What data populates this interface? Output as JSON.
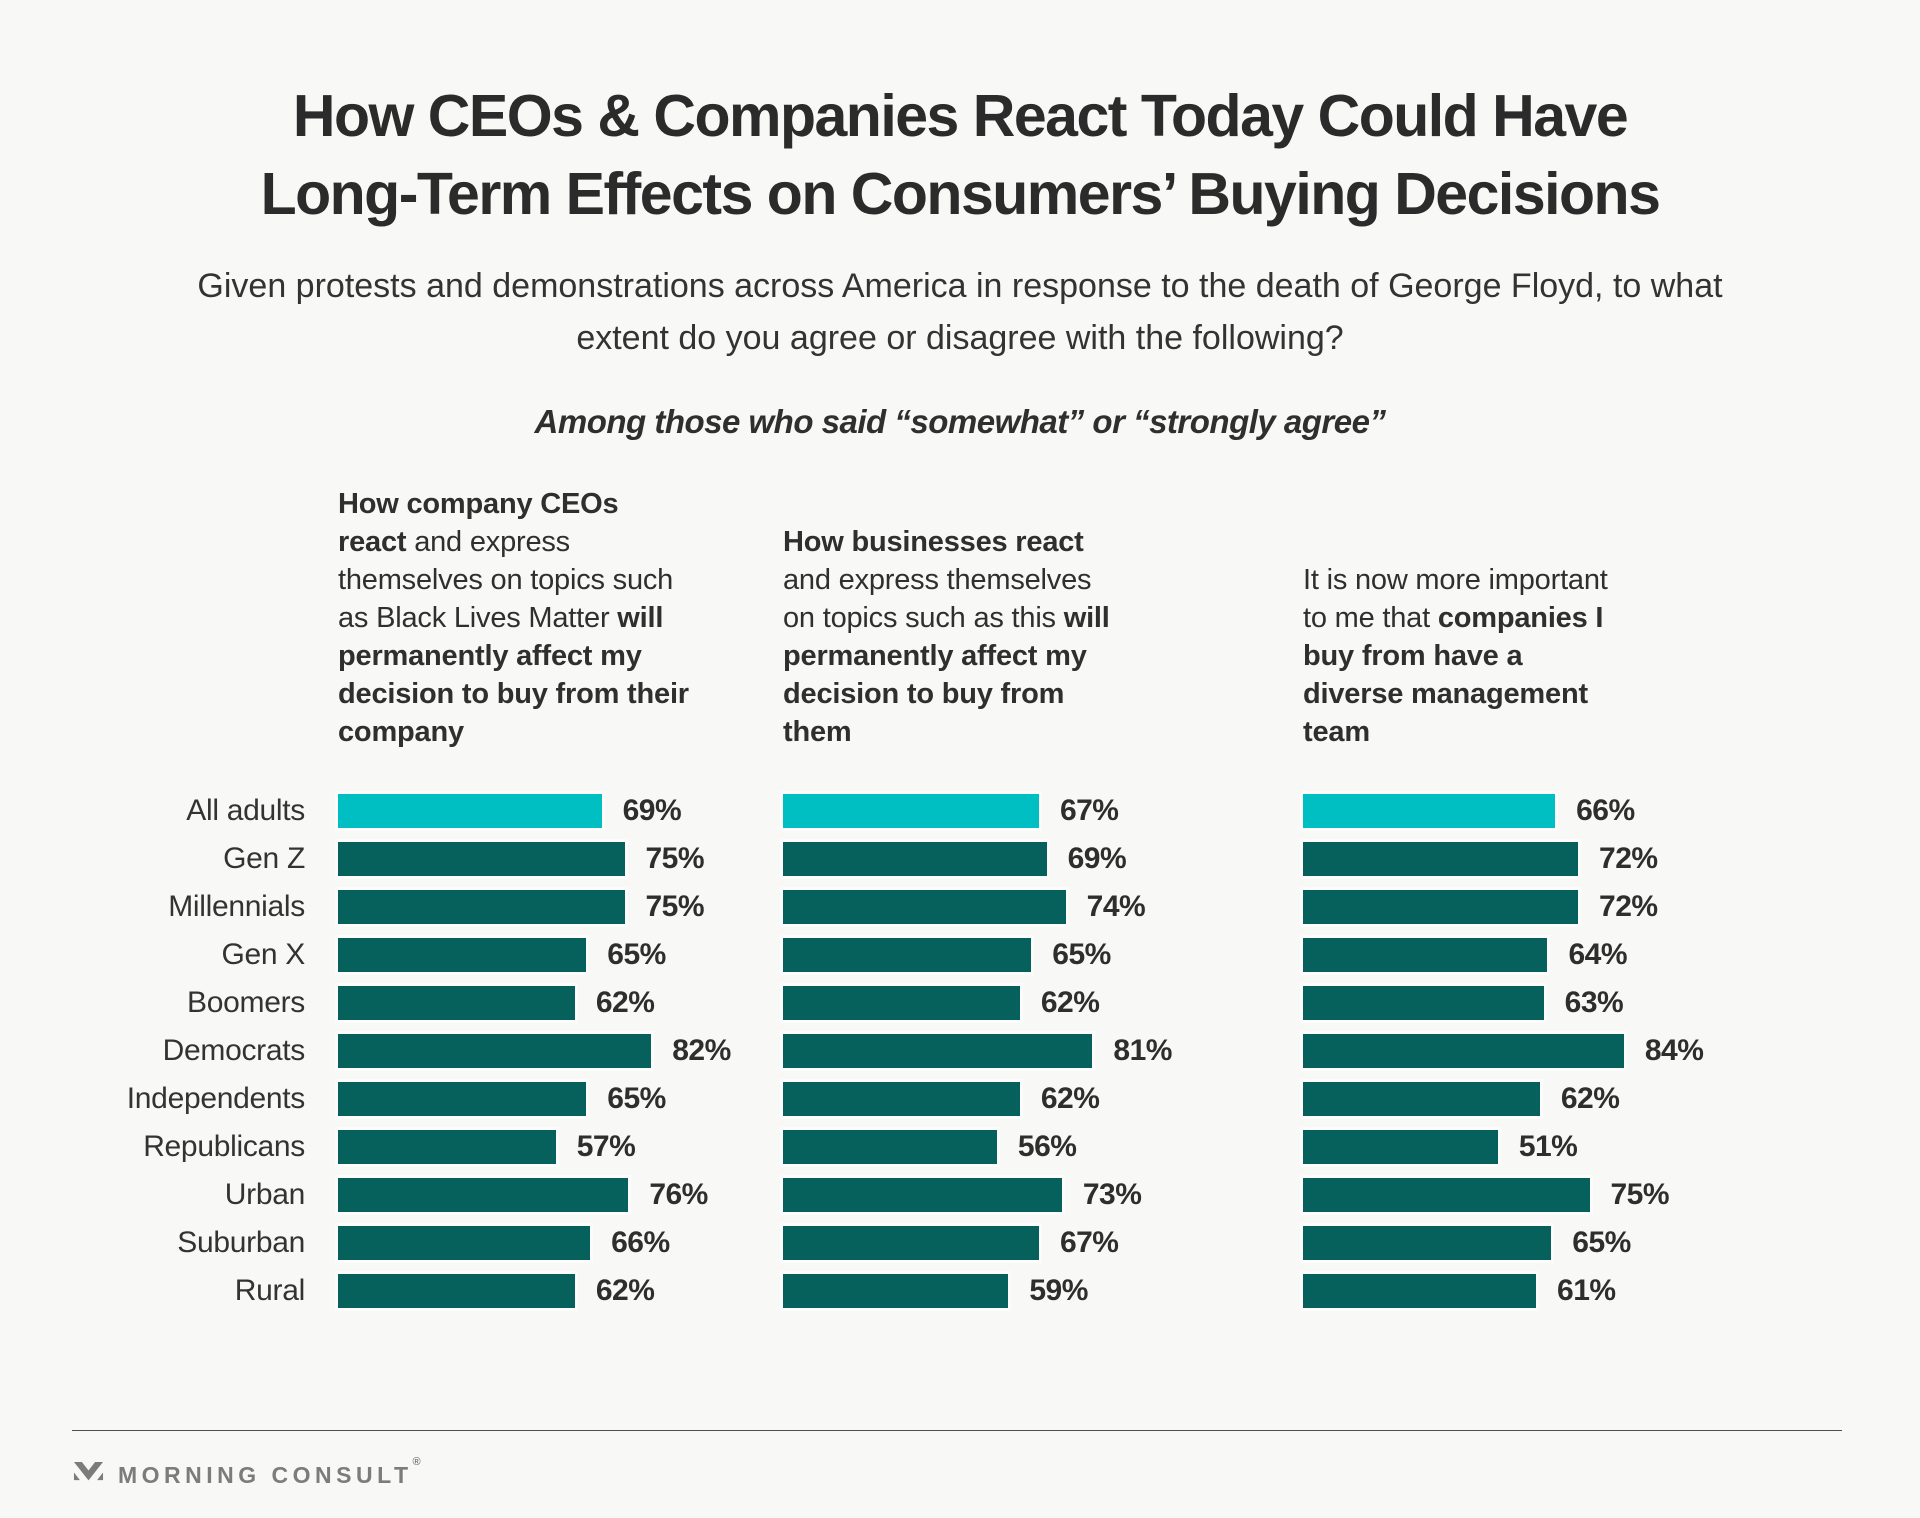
{
  "title": {
    "line1": "How CEOs & Companies React Today Could Have",
    "line2": "Long-Term Effects on Consumers’ Buying Decisions"
  },
  "subtitle": "Given protests and demonstrations across America in response to the death of George Floyd, to what extent do you agree or disagree with the following?",
  "note": "Among those who said “somewhat” or “strongly agree”",
  "columns": [
    {
      "label": "How company CEOs react and express themselves on topics such as Black Lives Matter will permanently affect my decision to buy from their company",
      "segments": [
        {
          "text": "How company CEOs react",
          "bold": true
        },
        {
          "text": " and express themselves on topics such as Black Lives Matter ",
          "bold": false
        },
        {
          "text": "will permanently affect my decision to buy from their company",
          "bold": true
        }
      ]
    },
    {
      "label": "How businesses react and express themselves on topics such as this will permanently affect my decision to buy from them",
      "segments": [
        {
          "text": "How businesses react",
          "bold": true
        },
        {
          "text": " and express themselves on topics such as this ",
          "bold": false
        },
        {
          "text": "will permanently affect my decision to buy from them",
          "bold": true
        }
      ]
    },
    {
      "label": "It is now more important to me that companies I buy from have a diverse management team",
      "segments": [
        {
          "text": "It is now more important to me that ",
          "bold": false
        },
        {
          "text": "companies I buy from have a diverse management team",
          "bold": true
        }
      ]
    }
  ],
  "chart_data": {
    "type": "bar",
    "orientation": "horizontal",
    "unit": "%",
    "xlim": [
      0,
      100
    ],
    "value_labels": true,
    "grid": false,
    "highlight_category": "All adults",
    "categories": [
      "All adults",
      "Gen Z",
      "Millennials",
      "Gen X",
      "Boomers",
      "Democrats",
      "Independents",
      "Republicans",
      "Urban",
      "Suburban",
      "Rural"
    ],
    "series": [
      {
        "name": "How company CEOs react will permanently affect my decision to buy from their company",
        "values": [
          69,
          75,
          75,
          65,
          62,
          82,
          65,
          57,
          76,
          66,
          62
        ]
      },
      {
        "name": "How businesses react will permanently affect my decision to buy from them",
        "values": [
          67,
          69,
          74,
          65,
          62,
          81,
          62,
          56,
          73,
          67,
          59
        ]
      },
      {
        "name": "It is now more important to me that companies I buy from have a diverse management team",
        "values": [
          66,
          72,
          72,
          64,
          63,
          84,
          62,
          51,
          75,
          65,
          61
        ]
      }
    ]
  },
  "colors": {
    "background": "#F8F8F6",
    "bar": "#06605C",
    "bar_highlight": "#00BFC3",
    "text": "#303030",
    "logo": "#7C7C7C"
  },
  "footer": {
    "brand": "MORNING CONSULT",
    "registered": "®"
  }
}
